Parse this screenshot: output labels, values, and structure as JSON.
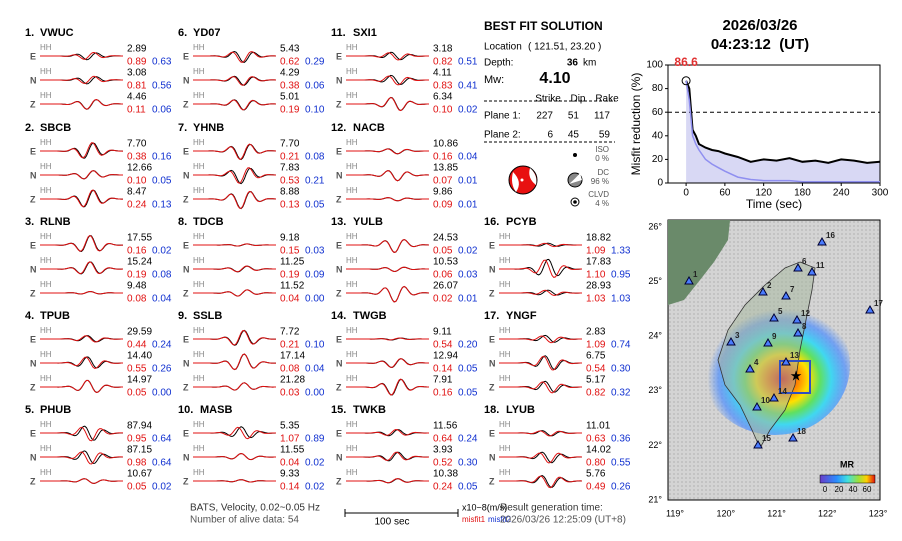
{
  "stations": [
    {
      "number": "1.",
      "name": "VWUC",
      "components": [
        {
          "label": "E",
          "channel": "HH",
          "amplitude": "2.89",
          "misfit1": "0.89",
          "misfit2": "0.63"
        },
        {
          "label": "N",
          "channel": "HH",
          "amplitude": "3.08",
          "misfit1": "0.81",
          "misfit2": "0.56"
        },
        {
          "label": "Z",
          "channel": "HH",
          "amplitude": "4.46",
          "misfit1": "0.11",
          "misfit2": "0.06"
        }
      ]
    },
    {
      "number": "2.",
      "name": "SBCB",
      "components": [
        {
          "label": "E",
          "channel": "HH",
          "amplitude": "7.70",
          "misfit1": "0.38",
          "misfit2": "0.16"
        },
        {
          "label": "N",
          "channel": "HH",
          "amplitude": "12.66",
          "misfit1": "0.10",
          "misfit2": "0.05"
        },
        {
          "label": "Z",
          "channel": "HH",
          "amplitude": "8.47",
          "misfit1": "0.24",
          "misfit2": "0.13"
        }
      ]
    },
    {
      "number": "3.",
      "name": "RLNB",
      "components": [
        {
          "label": "E",
          "channel": "HH",
          "amplitude": "17.55",
          "misfit1": "0.16",
          "misfit2": "0.02"
        },
        {
          "label": "N",
          "channel": "HH",
          "amplitude": "15.24",
          "misfit1": "0.19",
          "misfit2": "0.08"
        },
        {
          "label": "Z",
          "channel": "HH",
          "amplitude": "9.48",
          "misfit1": "0.08",
          "misfit2": "0.04"
        }
      ]
    },
    {
      "number": "4.",
      "name": "TPUB",
      "components": [
        {
          "label": "E",
          "channel": "HH",
          "amplitude": "29.59",
          "misfit1": "0.44",
          "misfit2": "0.24"
        },
        {
          "label": "N",
          "channel": "HH",
          "amplitude": "14.40",
          "misfit1": "0.55",
          "misfit2": "0.26"
        },
        {
          "label": "Z",
          "channel": "HH",
          "amplitude": "14.97",
          "misfit1": "0.05",
          "misfit2": "0.00"
        }
      ]
    },
    {
      "number": "5.",
      "name": "PHUB",
      "components": [
        {
          "label": "E",
          "channel": "HH",
          "amplitude": "87.94",
          "misfit1": "0.95",
          "misfit2": "0.64"
        },
        {
          "label": "N",
          "channel": "HH",
          "amplitude": "87.15",
          "misfit1": "0.98",
          "misfit2": "0.64"
        },
        {
          "label": "Z",
          "channel": "HH",
          "amplitude": "10.67",
          "misfit1": "0.05",
          "misfit2": "0.02"
        }
      ]
    },
    {
      "number": "6.",
      "name": "YD07",
      "components": [
        {
          "label": "E",
          "channel": "HH",
          "amplitude": "5.43",
          "misfit1": "0.62",
          "misfit2": "0.29"
        },
        {
          "label": "N",
          "channel": "HH",
          "amplitude": "4.29",
          "misfit1": "0.38",
          "misfit2": "0.06"
        },
        {
          "label": "Z",
          "channel": "HH",
          "amplitude": "5.01",
          "misfit1": "0.19",
          "misfit2": "0.10"
        }
      ]
    },
    {
      "number": "7.",
      "name": "YHNB",
      "components": [
        {
          "label": "E",
          "channel": "HH",
          "amplitude": "7.70",
          "misfit1": "0.21",
          "misfit2": "0.08"
        },
        {
          "label": "N",
          "channel": "HH",
          "amplitude": "7.83",
          "misfit1": "0.53",
          "misfit2": "0.21"
        },
        {
          "label": "Z",
          "channel": "HH",
          "amplitude": "8.88",
          "misfit1": "0.13",
          "misfit2": "0.05"
        }
      ]
    },
    {
      "number": "8.",
      "name": "TDCB",
      "components": [
        {
          "label": "E",
          "channel": "HH",
          "amplitude": "9.18",
          "misfit1": "0.15",
          "misfit2": "0.03"
        },
        {
          "label": "N",
          "channel": "HH",
          "amplitude": "11.25",
          "misfit1": "0.19",
          "misfit2": "0.09"
        },
        {
          "label": "Z",
          "channel": "HH",
          "amplitude": "11.52",
          "misfit1": "0.04",
          "misfit2": "0.00"
        }
      ]
    },
    {
      "number": "9.",
      "name": "SSLB",
      "components": [
        {
          "label": "E",
          "channel": "HH",
          "amplitude": "7.72",
          "misfit1": "0.21",
          "misfit2": "0.10"
        },
        {
          "label": "N",
          "channel": "HH",
          "amplitude": "17.14",
          "misfit1": "0.08",
          "misfit2": "0.04"
        },
        {
          "label": "Z",
          "channel": "HH",
          "amplitude": "21.28",
          "misfit1": "0.03",
          "misfit2": "0.00"
        }
      ]
    },
    {
      "number": "10.",
      "name": "MASB",
      "components": [
        {
          "label": "E",
          "channel": "HH",
          "amplitude": "5.35",
          "misfit1": "1.07",
          "misfit2": "0.89"
        },
        {
          "label": "N",
          "channel": "HH",
          "amplitude": "11.55",
          "misfit1": "0.04",
          "misfit2": "0.02"
        },
        {
          "label": "Z",
          "channel": "HH",
          "amplitude": "9.33",
          "misfit1": "0.14",
          "misfit2": "0.02"
        }
      ]
    },
    {
      "number": "11.",
      "name": "SXI1",
      "components": [
        {
          "label": "E",
          "channel": "HH",
          "amplitude": "3.18",
          "misfit1": "0.82",
          "misfit2": "0.51"
        },
        {
          "label": "N",
          "channel": "HH",
          "amplitude": "4.11",
          "misfit1": "0.83",
          "misfit2": "0.41"
        },
        {
          "label": "Z",
          "channel": "HH",
          "amplitude": "6.34",
          "misfit1": "0.10",
          "misfit2": "0.02"
        }
      ]
    },
    {
      "number": "12.",
      "name": "NACB",
      "components": [
        {
          "label": "E",
          "channel": "HH",
          "amplitude": "10.86",
          "misfit1": "0.16",
          "misfit2": "0.04"
        },
        {
          "label": "N",
          "channel": "HH",
          "amplitude": "13.85",
          "misfit1": "0.07",
          "misfit2": "0.01"
        },
        {
          "label": "Z",
          "channel": "HH",
          "amplitude": "9.86",
          "misfit1": "0.09",
          "misfit2": "0.01"
        }
      ]
    },
    {
      "number": "13.",
      "name": "YULB",
      "components": [
        {
          "label": "E",
          "channel": "HH",
          "amplitude": "24.53",
          "misfit1": "0.05",
          "misfit2": "0.02"
        },
        {
          "label": "N",
          "channel": "HH",
          "amplitude": "10.53",
          "misfit1": "0.06",
          "misfit2": "0.03"
        },
        {
          "label": "Z",
          "channel": "HH",
          "amplitude": "26.07",
          "misfit1": "0.02",
          "misfit2": "0.01"
        }
      ]
    },
    {
      "number": "14.",
      "name": "TWGB",
      "components": [
        {
          "label": "E",
          "channel": "HH",
          "amplitude": "9.11",
          "misfit1": "0.54",
          "misfit2": "0.20"
        },
        {
          "label": "N",
          "channel": "HH",
          "amplitude": "12.94",
          "misfit1": "0.14",
          "misfit2": "0.05"
        },
        {
          "label": "Z",
          "channel": "HH",
          "amplitude": "7.91",
          "misfit1": "0.16",
          "misfit2": "0.05"
        }
      ]
    },
    {
      "number": "15.",
      "name": "TWKB",
      "components": [
        {
          "label": "E",
          "channel": "HH",
          "amplitude": "11.56",
          "misfit1": "0.64",
          "misfit2": "0.24"
        },
        {
          "label": "N",
          "channel": "HH",
          "amplitude": "3.93",
          "misfit1": "0.52",
          "misfit2": "0.30"
        },
        {
          "label": "Z",
          "channel": "HH",
          "amplitude": "10.38",
          "misfit1": "0.24",
          "misfit2": "0.05"
        }
      ]
    },
    {
      "number": "16.",
      "name": "PCYB",
      "components": [
        {
          "label": "E",
          "channel": "HH",
          "amplitude": "18.82",
          "misfit1": "1.09",
          "misfit2": "1.33"
        },
        {
          "label": "N",
          "channel": "HH",
          "amplitude": "17.83",
          "misfit1": "1.10",
          "misfit2": "0.95"
        },
        {
          "label": "Z",
          "channel": "HH",
          "amplitude": "28.93",
          "misfit1": "1.03",
          "misfit2": "1.03"
        }
      ]
    },
    {
      "number": "17.",
      "name": "YNGF",
      "components": [
        {
          "label": "E",
          "channel": "HH",
          "amplitude": "2.83",
          "misfit1": "1.09",
          "misfit2": "0.74"
        },
        {
          "label": "N",
          "channel": "HH",
          "amplitude": "6.75",
          "misfit1": "0.54",
          "misfit2": "0.30"
        },
        {
          "label": "Z",
          "channel": "HH",
          "amplitude": "5.17",
          "misfit1": "0.82",
          "misfit2": "0.32"
        }
      ]
    },
    {
      "number": "18.",
      "name": "LYUB",
      "components": [
        {
          "label": "E",
          "channel": "HH",
          "amplitude": "11.01",
          "misfit1": "0.63",
          "misfit2": "0.36"
        },
        {
          "label": "N",
          "channel": "HH",
          "amplitude": "14.02",
          "misfit1": "0.80",
          "misfit2": "0.55"
        },
        {
          "label": "Z",
          "channel": "HH",
          "amplitude": "5.76",
          "misfit1": "0.49",
          "misfit2": "0.26"
        }
      ]
    }
  ],
  "solution": {
    "title": "BEST FIT SOLUTION",
    "location_label": "Location",
    "location": "( 121.51, 23.20 )",
    "depth_label": "Depth:",
    "depth": "36",
    "depth_unit": "km",
    "mw_label": "Mw:",
    "mw": "4.10",
    "headers": [
      "Strike",
      "Dip",
      "Rake"
    ],
    "planes": [
      {
        "label": "Plane 1:",
        "values": [
          "227",
          "51",
          "117"
        ]
      },
      {
        "label": "Plane 2:",
        "values": [
          "6",
          "45",
          "59"
        ]
      }
    ],
    "components": [
      {
        "name": "ISO",
        "value": "0 %"
      },
      {
        "name": "DC",
        "value": "96 %"
      },
      {
        "name": "CLVD",
        "value": "4 %"
      }
    ]
  },
  "origin_time": {
    "date": "2026/03/26",
    "time": "04:23:12  (UT)"
  },
  "chart_data": {
    "type": "line",
    "x_label": "Time (sec)",
    "y_label": "Misfit reduction (%)",
    "annotations": [
      "86.6"
    ],
    "x": [
      0,
      5,
      10,
      15,
      20,
      30,
      40,
      50,
      60,
      80,
      100,
      120,
      140,
      160,
      180,
      200,
      220,
      240,
      260,
      280,
      300
    ],
    "series": [
      {
        "color": "#000000",
        "values": [
          86.6,
          80,
          45,
          40,
          33,
          30,
          28,
          27,
          25,
          22,
          18,
          20,
          19,
          21,
          18,
          19,
          17,
          20,
          19,
          17,
          18
        ]
      },
      {
        "color": "#8f8ff0",
        "values": [
          86.6,
          70,
          40,
          33,
          28,
          20,
          16,
          13,
          10,
          5,
          3,
          2,
          2,
          2,
          1,
          1,
          1,
          1,
          1,
          1,
          1
        ]
      }
    ],
    "xlim": [
      -28,
      300
    ],
    "xticks": [
      0,
      60,
      120,
      180,
      240,
      300
    ],
    "ylim": [
      0,
      100
    ],
    "yticks": [
      0,
      20,
      40,
      60,
      80,
      100
    ],
    "reference_line": 60
  },
  "map": {
    "xticks": [
      "119°",
      "120°",
      "121°",
      "122°",
      "123°"
    ],
    "yticks": [
      "21°",
      "22°",
      "23°",
      "24°",
      "25°",
      "26°"
    ],
    "stations": [
      "1",
      "2",
      "3",
      "4",
      "5",
      "6",
      "7",
      "8",
      "9",
      "10",
      "11",
      "12",
      "13",
      "14",
      "15",
      "16",
      "17",
      "18"
    ],
    "colorbar_title": "MR",
    "colorbar_ticks": [
      "0",
      "20",
      "40",
      "60"
    ]
  },
  "footer": {
    "filter": "BATS, Velocity, 0.02~0.05 Hz",
    "alive": "Number of alive data: 54",
    "scale": "100 sec",
    "units": "x10−8(m/s)",
    "misfit1": "misfit1",
    "misfit2": "misfit2",
    "generated_label": "Result generation time:",
    "generated": "2026/03/26 12:25:09 (UT+8)"
  }
}
